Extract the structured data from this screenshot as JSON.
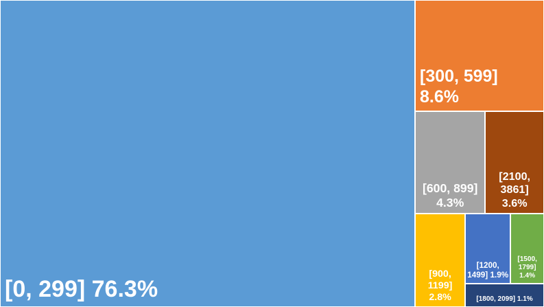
{
  "chart_data": {
    "type": "treemap",
    "categories": [
      "[0, 299]",
      "[300, 599]",
      "[600, 899]",
      "[2100, 3861]",
      "[900, 1199]",
      "[1200, 1499]",
      "[1500, 1799]",
      "[1800, 2099]"
    ],
    "values": [
      76.3,
      8.6,
      4.3,
      3.6,
      2.8,
      1.9,
      1.4,
      1.1
    ],
    "value_labels": [
      "76.3%",
      "8.6%",
      "4.3%",
      "3.6%",
      "2.8%",
      "1.9%",
      "1.4%",
      "1.1%"
    ],
    "colors": [
      "#5b9bd5",
      "#ed7d31",
      "#a5a5a5",
      "#9e480e",
      "#ffc000",
      "#4472c4",
      "#70ad47",
      "#264478"
    ]
  }
}
